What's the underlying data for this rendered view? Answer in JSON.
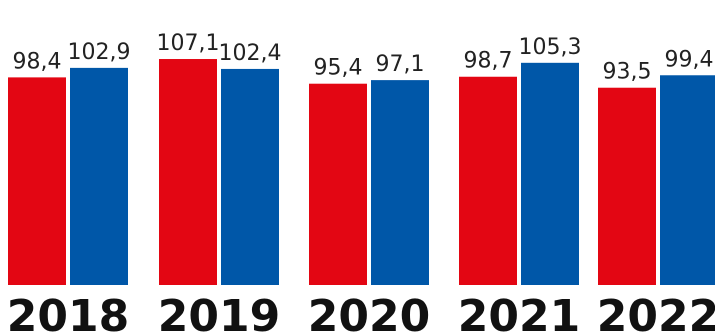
{
  "colors": {
    "series_a": "#e30613",
    "series_b": "#0057a8",
    "background": "#ffffff",
    "text": "#111111"
  },
  "chart_data": {
    "type": "bar",
    "categories": [
      "2018",
      "2019",
      "2020",
      "2021",
      "2022"
    ],
    "series": [
      {
        "color": "#e30613",
        "values": [
          98.4,
          107.1,
          95.4,
          98.7,
          93.5
        ],
        "labels": [
          "98,4",
          "107,1",
          "95,4",
          "98,7",
          "93,5"
        ]
      },
      {
        "color": "#0057a8",
        "values": [
          102.9,
          102.4,
          97.1,
          105.3,
          99.4
        ],
        "labels": [
          "102,9",
          "102,4",
          "97,1",
          "105,3",
          "99,4"
        ]
      }
    ],
    "title": "",
    "xlabel": "",
    "ylabel": "",
    "grid": false,
    "legend": "none"
  }
}
